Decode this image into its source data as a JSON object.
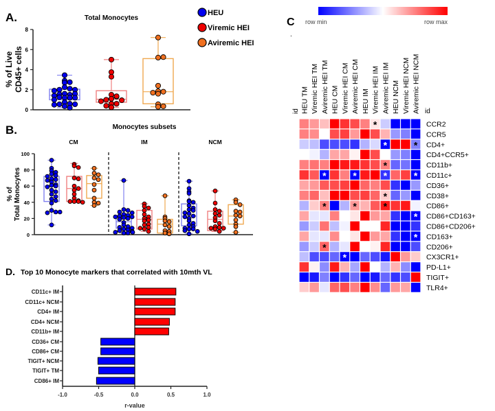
{
  "legend": {
    "entries": [
      {
        "label": "HEU",
        "color": "#0000ee"
      },
      {
        "label": "Viremic HEI",
        "color": "#ee0000"
      },
      {
        "label": "Aviremic HEI",
        "color": "#f07020"
      }
    ],
    "box_colors": [
      "#8080f0",
      "#f08080",
      "#f0a850"
    ]
  },
  "chart_data": [
    {
      "panel": "A.",
      "type": "box-scatter",
      "title": "Total Monocytes",
      "ylabel": [
        "% of Live",
        "CD45+ cells"
      ],
      "ylim": [
        0,
        8
      ],
      "yticks": [
        "0",
        "2",
        "4",
        "6",
        "8"
      ],
      "groups": [
        {
          "name": "HEU",
          "box": [
            0.2,
            1.0,
            1.45,
            2.05,
            3.45
          ],
          "points": [
            3.45,
            2.9,
            2.7,
            2.75,
            2.25,
            2.1,
            2.0,
            2.0,
            1.9,
            1.6,
            1.5,
            1.55,
            1.6,
            1.4,
            1.2,
            1.2,
            1.25,
            1.2,
            1.0,
            0.75,
            0.6,
            0.55,
            0.55,
            0.5,
            0.35,
            0.2
          ]
        },
        {
          "name": "Viremic HEI",
          "box": [
            0.25,
            0.75,
            1.05,
            1.9,
            5.0
          ],
          "points": [
            5.0,
            3.75,
            3.3,
            1.5,
            1.1,
            1.3,
            1.35,
            1.0,
            0.95,
            0.85,
            0.6,
            0.6,
            0.4,
            0.25
          ]
        },
        {
          "name": "Aviremic HEI",
          "box": [
            0.3,
            0.6,
            1.8,
            5.1,
            7.2
          ],
          "points": [
            7.2,
            5.2,
            5.25,
            2.4,
            1.85,
            1.6,
            1.8,
            1.7,
            0.55,
            0.3,
            0.35
          ]
        }
      ]
    },
    {
      "panel": "B.",
      "type": "box-scatter",
      "title": "Monocytes subsets",
      "ylabel": [
        "% of",
        "Total Monocytes"
      ],
      "ylim": [
        0,
        100
      ],
      "yticks": [
        "0",
        "20",
        "40",
        "60",
        "80",
        "100"
      ],
      "subsets": [
        {
          "name": "CM",
          "groups": [
            {
              "name": "HEU",
              "box": [
                12,
                41,
                60,
                72,
                92
              ],
              "points": [
                92,
                82,
                79,
                77,
                75,
                73,
                72,
                69,
                68,
                67,
                65,
                62,
                61,
                60,
                59,
                55,
                53,
                50,
                47,
                44,
                42,
                39,
                30,
                28,
                27,
                28,
                12
              ]
            },
            {
              "name": "Viremic HEI",
              "box": [
                40,
                41,
                57,
                72,
                88
              ],
              "points": [
                87,
                85,
                83,
                70,
                69,
                60,
                57,
                55,
                50,
                45,
                42,
                41,
                41,
                41,
                40
              ]
            },
            {
              "name": "Aviremic HEI",
              "box": [
                36,
                45,
                63,
                73,
                82
              ],
              "points": [
                82,
                76,
                74,
                70,
                68,
                62,
                55,
                45,
                40,
                39,
                36
              ]
            }
          ]
        },
        {
          "name": "IM",
          "groups": [
            {
              "name": "HEU",
              "box": [
                2,
                8,
                16,
                22,
                67
              ],
              "points": [
                67,
                31,
                30,
                28,
                27,
                25,
                24,
                23,
                22,
                22,
                21,
                20,
                19,
                15,
                12,
                10,
                9,
                8,
                7,
                6,
                5,
                4,
                3,
                3,
                2,
                2
              ]
            },
            {
              "name": "Viremic HEI",
              "box": [
                4,
                7,
                19,
                30,
                38
              ],
              "points": [
                38,
                35,
                33,
                30,
                25,
                22,
                20,
                18,
                17,
                13,
                12,
                9,
                8,
                7,
                4
              ]
            },
            {
              "name": "Aviremic HEI",
              "box": [
                1,
                2,
                13,
                19,
                48
              ],
              "points": [
                48,
                22,
                20,
                17,
                16,
                12,
                10,
                5,
                4,
                2,
                1
              ]
            }
          ]
        },
        {
          "name": "NCM",
          "groups": [
            {
              "name": "HEU",
              "box": [
                1,
                11,
                23,
                38,
                66
              ],
              "points": [
                66,
                57,
                53,
                51,
                42,
                41,
                40,
                36,
                33,
                31,
                30,
                27,
                26,
                23,
                22,
                20,
                17,
                14,
                12,
                10,
                8,
                7,
                7,
                5,
                4,
                1
              ]
            },
            {
              "name": "Viremic HEI",
              "box": [
                4,
                5,
                19,
                29,
                54
              ],
              "points": [
                54,
                39,
                31,
                29,
                26,
                24,
                21,
                17,
                14,
                10,
                9,
                8,
                8,
                7,
                4
              ]
            },
            {
              "name": "Aviremic HEI",
              "box": [
                3,
                13,
                23,
                37,
                43
              ],
              "points": [
                43,
                40,
                37,
                29,
                28,
                24,
                23,
                18,
                13,
                10,
                3
              ]
            }
          ]
        }
      ]
    },
    {
      "panel": "C",
      "type": "heatmap",
      "dot": ".",
      "colorbar": {
        "min_label": "row min",
        "max_label": "row max",
        "min_color": "#0000ff",
        "mid_color": "#ffffff",
        "max_color": "#ff0000"
      },
      "id_label": "id",
      "columns": [
        "HEU TM",
        "Viremic HEI TM",
        "Aviremic HEI TM",
        "HEU CM",
        "Viremic HEI CM",
        "Aviremic HEI CM",
        "HEU IM",
        "Viremic HEI IM",
        "Aviremic HEI IM",
        "HEU NCM",
        "Viremic HEI NCM",
        "Aviremic HEI NCM"
      ],
      "rows": [
        "CCR2",
        "CCR5",
        "CD4+",
        "CD4+CCR5+",
        "CD11b+",
        "CD11c+",
        "CD36+",
        "CD38+",
        "CD86+",
        "CD86+CD163+",
        "CD86+CD206+",
        "CD163+",
        "CD206+",
        "CX3CR1+",
        "PD-L1+",
        "TIGIT+",
        "TLR4+"
      ],
      "values": [
        [
          0.5,
          0.4,
          0.25,
          1,
          0.8,
          0.7,
          0.5,
          0.1,
          -0.2,
          -1,
          -1,
          -1
        ],
        [
          0.5,
          0.45,
          0,
          0.7,
          0.75,
          0.4,
          1,
          0.7,
          0.3,
          -0.4,
          -0.5,
          -1
        ],
        [
          -0.2,
          -0.25,
          -0.7,
          -0.7,
          -0.7,
          -0.8,
          -0.3,
          -0.15,
          -1,
          1,
          1,
          -0.5
        ],
        [
          0,
          -0.05,
          -0.3,
          0.35,
          0.35,
          0.05,
          1,
          0.7,
          0,
          -0.4,
          -0.5,
          -1
        ],
        [
          0.5,
          0.55,
          0.5,
          1,
          0.9,
          0.9,
          0.8,
          0.7,
          0.5,
          -0.6,
          -0.55,
          -1
        ],
        [
          0.8,
          0.65,
          -1,
          0.8,
          0.5,
          -1,
          0.9,
          1,
          -0.8,
          0.6,
          0.75,
          -1
        ],
        [
          0.35,
          0.4,
          0.65,
          0.7,
          0.75,
          1,
          0.6,
          0.5,
          0.7,
          -0.8,
          -1,
          -0.4
        ],
        [
          0.5,
          0.6,
          0.25,
          1,
          1,
          0.7,
          0.75,
          0.6,
          0.2,
          -0.6,
          -0.4,
          -1
        ],
        [
          -0.3,
          0.2,
          0.5,
          -1,
          -0.3,
          0.4,
          0.3,
          0.65,
          0.9,
          0.8,
          0.9,
          -0.05
        ],
        [
          0.35,
          -0.1,
          -0.1,
          0.5,
          0,
          0.1,
          1,
          0.4,
          0.35,
          -0.8,
          -1,
          -1
        ],
        [
          -0.4,
          -0.2,
          0.55,
          -0.25,
          -0.05,
          1,
          0,
          0,
          0.85,
          -1,
          -1,
          -0.8
        ],
        [
          0.35,
          -0.1,
          -0.1,
          0.45,
          0,
          0.1,
          1,
          0.4,
          0.35,
          -0.8,
          -1,
          -1
        ],
        [
          -0.4,
          -0.2,
          0.6,
          -0.3,
          -0.1,
          1,
          0,
          0.05,
          0.85,
          -1,
          -1,
          -0.7
        ],
        [
          -0.25,
          -0.7,
          -0.7,
          -0.6,
          -1,
          -1,
          -0.6,
          -0.7,
          -0.9,
          1,
          0.4,
          0.2
        ],
        [
          0.8,
          0.05,
          -0.45,
          0.9,
          0.3,
          -0.35,
          1,
          0,
          -0.3,
          0.3,
          -0.45,
          -1
        ],
        [
          -1,
          -0.9,
          -0.5,
          -1,
          -0.8,
          -0.6,
          -1,
          -0.9,
          -0.6,
          -0.8,
          -0.7,
          1
        ],
        [
          0.2,
          0.4,
          -0.1,
          0.6,
          0.7,
          0.5,
          1,
          0.45,
          -0.6,
          0.4,
          0.35,
          -1
        ]
      ],
      "significance_marks": [
        {
          "row": 0,
          "col": 7,
          "symbol": "*",
          "color": "#000000"
        },
        {
          "row": 2,
          "col": 8,
          "symbol": "*",
          "color": "#ffffff"
        },
        {
          "row": 2,
          "col": 11,
          "symbol": "*",
          "color": "#000000"
        },
        {
          "row": 4,
          "col": 8,
          "symbol": "*",
          "color": "#000000"
        },
        {
          "row": 5,
          "col": 2,
          "symbol": "*",
          "color": "#ffffff"
        },
        {
          "row": 5,
          "col": 5,
          "symbol": "*",
          "color": "#ffffff"
        },
        {
          "row": 5,
          "col": 8,
          "symbol": "*",
          "color": "#ffffff"
        },
        {
          "row": 5,
          "col": 11,
          "symbol": "*",
          "color": "#ffffff"
        },
        {
          "row": 7,
          "col": 8,
          "symbol": "*",
          "color": "#000000"
        },
        {
          "row": 8,
          "col": 2,
          "symbol": "*",
          "color": "#000000"
        },
        {
          "row": 8,
          "col": 5,
          "symbol": "*",
          "color": "#000000"
        },
        {
          "row": 8,
          "col": 8,
          "symbol": "*",
          "color": "#000000"
        },
        {
          "row": 9,
          "col": 11,
          "symbol": "*",
          "color": "#ffffff"
        },
        {
          "row": 11,
          "col": 11,
          "symbol": "*",
          "color": "#ffffff"
        },
        {
          "row": 12,
          "col": 2,
          "symbol": "*",
          "color": "#000000"
        },
        {
          "row": 13,
          "col": 4,
          "symbol": "*",
          "color": "#ffffff"
        }
      ]
    },
    {
      "panel": "D.",
      "type": "bar",
      "orientation": "horizontal",
      "title": "Top 10 Monocyte markers that correlated with 10mth VL",
      "xlabel": "r-value",
      "xlim": [
        -1,
        1
      ],
      "xticks": [
        "-1.0",
        "-0.5",
        "0.0",
        "0.5",
        "1.0"
      ],
      "categories": [
        "CD11c+ IM",
        "CD11c+ NCM",
        "CD4+ IM",
        "CD4+ NCM",
        "CD11b+ IM",
        "CD36+ CM",
        "CD86+ CM",
        "TIGIT+ NCM",
        "TIGIT+ TM",
        "CD86+ IM"
      ],
      "values": [
        0.57,
        0.56,
        0.56,
        0.48,
        0.47,
        -0.47,
        -0.47,
        -0.51,
        -0.5,
        -0.53
      ],
      "positive_color": "#ff0000",
      "negative_color": "#0000ff"
    }
  ]
}
